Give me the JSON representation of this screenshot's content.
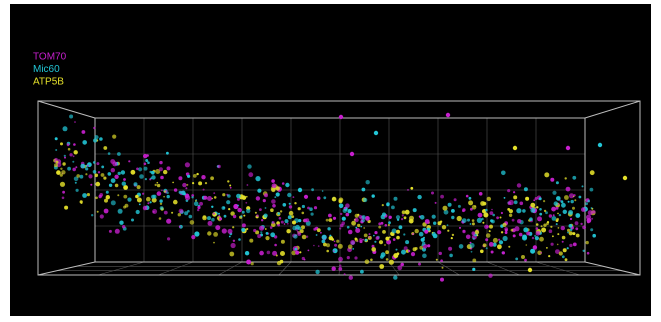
{
  "legend": [
    {
      "label": "TOM70",
      "color": "#c81fcf"
    },
    {
      "label": "Mic60",
      "color": "#22c6d6"
    },
    {
      "label": "ATP5B",
      "color": "#e4e02a"
    }
  ]
}
